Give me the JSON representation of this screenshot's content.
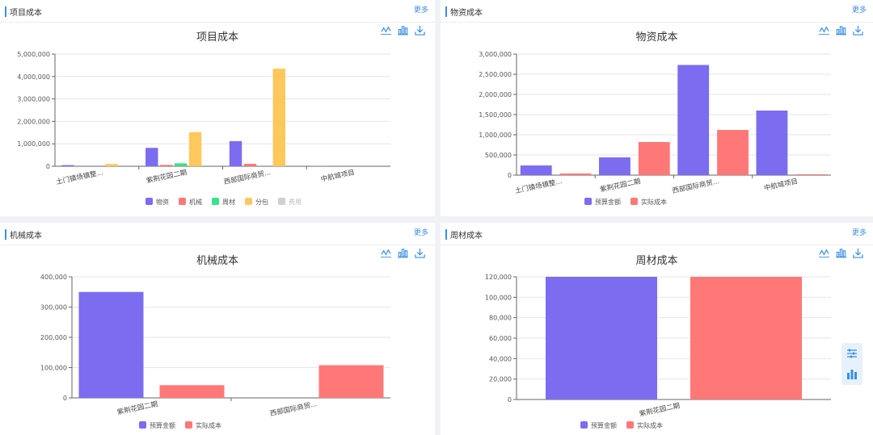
{
  "panels": [
    {
      "header": "项目成本",
      "more": "更多",
      "chart_data": {
        "type": "bar",
        "title": "项目成本",
        "categories": [
          "土门镇场镇整...",
          "紫荆花园二期",
          "西部国际商贸...",
          "中航城项目"
        ],
        "series": [
          {
            "name": "物资",
            "values": [
              50000,
              820000,
              1120000,
              20000
            ]
          },
          {
            "name": "机械",
            "values": [
              0,
              60000,
              110000,
              0
            ]
          },
          {
            "name": "周材",
            "values": [
              0,
              130000,
              0,
              0
            ]
          },
          {
            "name": "分包",
            "values": [
              100000,
              1520000,
              4350000,
              0
            ]
          },
          {
            "name": "费用",
            "values": [
              0,
              0,
              0,
              0
            ]
          }
        ],
        "ylim": [
          0,
          5000000
        ],
        "yticks": [
          "0",
          "1,000,000",
          "2,000,000",
          "3,000,000",
          "4,000,000",
          "5,000,000"
        ],
        "colors": [
          "#7b6cf0",
          "#ff7878",
          "#3be08a",
          "#ffc85c",
          "#cfcfcf"
        ],
        "legend_inactive": [
          false,
          false,
          false,
          false,
          true
        ],
        "legend_position": "bottom",
        "grid": true
      }
    },
    {
      "header": "物资成本",
      "more": "更多",
      "chart_data": {
        "type": "bar",
        "title": "物资成本",
        "categories": [
          "土门镇场镇整...",
          "紫荆花园二期",
          "西部国际商贸...",
          "中航城项目"
        ],
        "series": [
          {
            "name": "预算金额",
            "values": [
              240000,
              440000,
              2730000,
              1600000
            ]
          },
          {
            "name": "实际成本",
            "values": [
              40000,
              820000,
              1120000,
              20000
            ]
          }
        ],
        "ylim": [
          0,
          3000000
        ],
        "yticks": [
          "0",
          "500,000",
          "1,000,000",
          "1,500,000",
          "2,000,000",
          "2,500,000",
          "3,000,000"
        ],
        "colors": [
          "#7b6cf0",
          "#ff7878"
        ],
        "legend_inactive": [
          false,
          false
        ],
        "legend_position": "bottom",
        "grid": true
      }
    },
    {
      "header": "机械成本",
      "more": "更多",
      "chart_data": {
        "type": "bar",
        "title": "机械成本",
        "categories": [
          "紫荆花园二期",
          "西部国际商贸..."
        ],
        "series": [
          {
            "name": "预算金额",
            "values": [
              350000,
              0
            ]
          },
          {
            "name": "实际成本",
            "values": [
              42000,
              108000
            ]
          }
        ],
        "ylim": [
          0,
          400000
        ],
        "yticks": [
          "0",
          "100,000",
          "200,000",
          "300,000",
          "400,000"
        ],
        "colors": [
          "#7b6cf0",
          "#ff7878"
        ],
        "legend_inactive": [
          false,
          false
        ],
        "legend_position": "bottom",
        "grid": true
      }
    },
    {
      "header": "周材成本",
      "more": "更多",
      "chart_data": {
        "type": "bar",
        "title": "周材成本",
        "categories": [
          "紫荆花园二期"
        ],
        "series": [
          {
            "name": "预算金额",
            "values": [
              120000
            ]
          },
          {
            "name": "实际成本",
            "values": [
              120000
            ]
          }
        ],
        "ylim": [
          0,
          120000
        ],
        "yticks": [
          "0",
          "20,000",
          "40,000",
          "60,000",
          "80,000",
          "100,000",
          "120,000"
        ],
        "colors": [
          "#7b6cf0",
          "#ff7878"
        ],
        "legend_inactive": [
          false,
          false
        ],
        "legend_position": "bottom",
        "grid": true
      }
    }
  ],
  "toolbox_icons": [
    "line-chart-icon",
    "bar-chart-icon",
    "download-icon"
  ],
  "float_tools": [
    "sliders-icon",
    "bar-chart-icon"
  ]
}
